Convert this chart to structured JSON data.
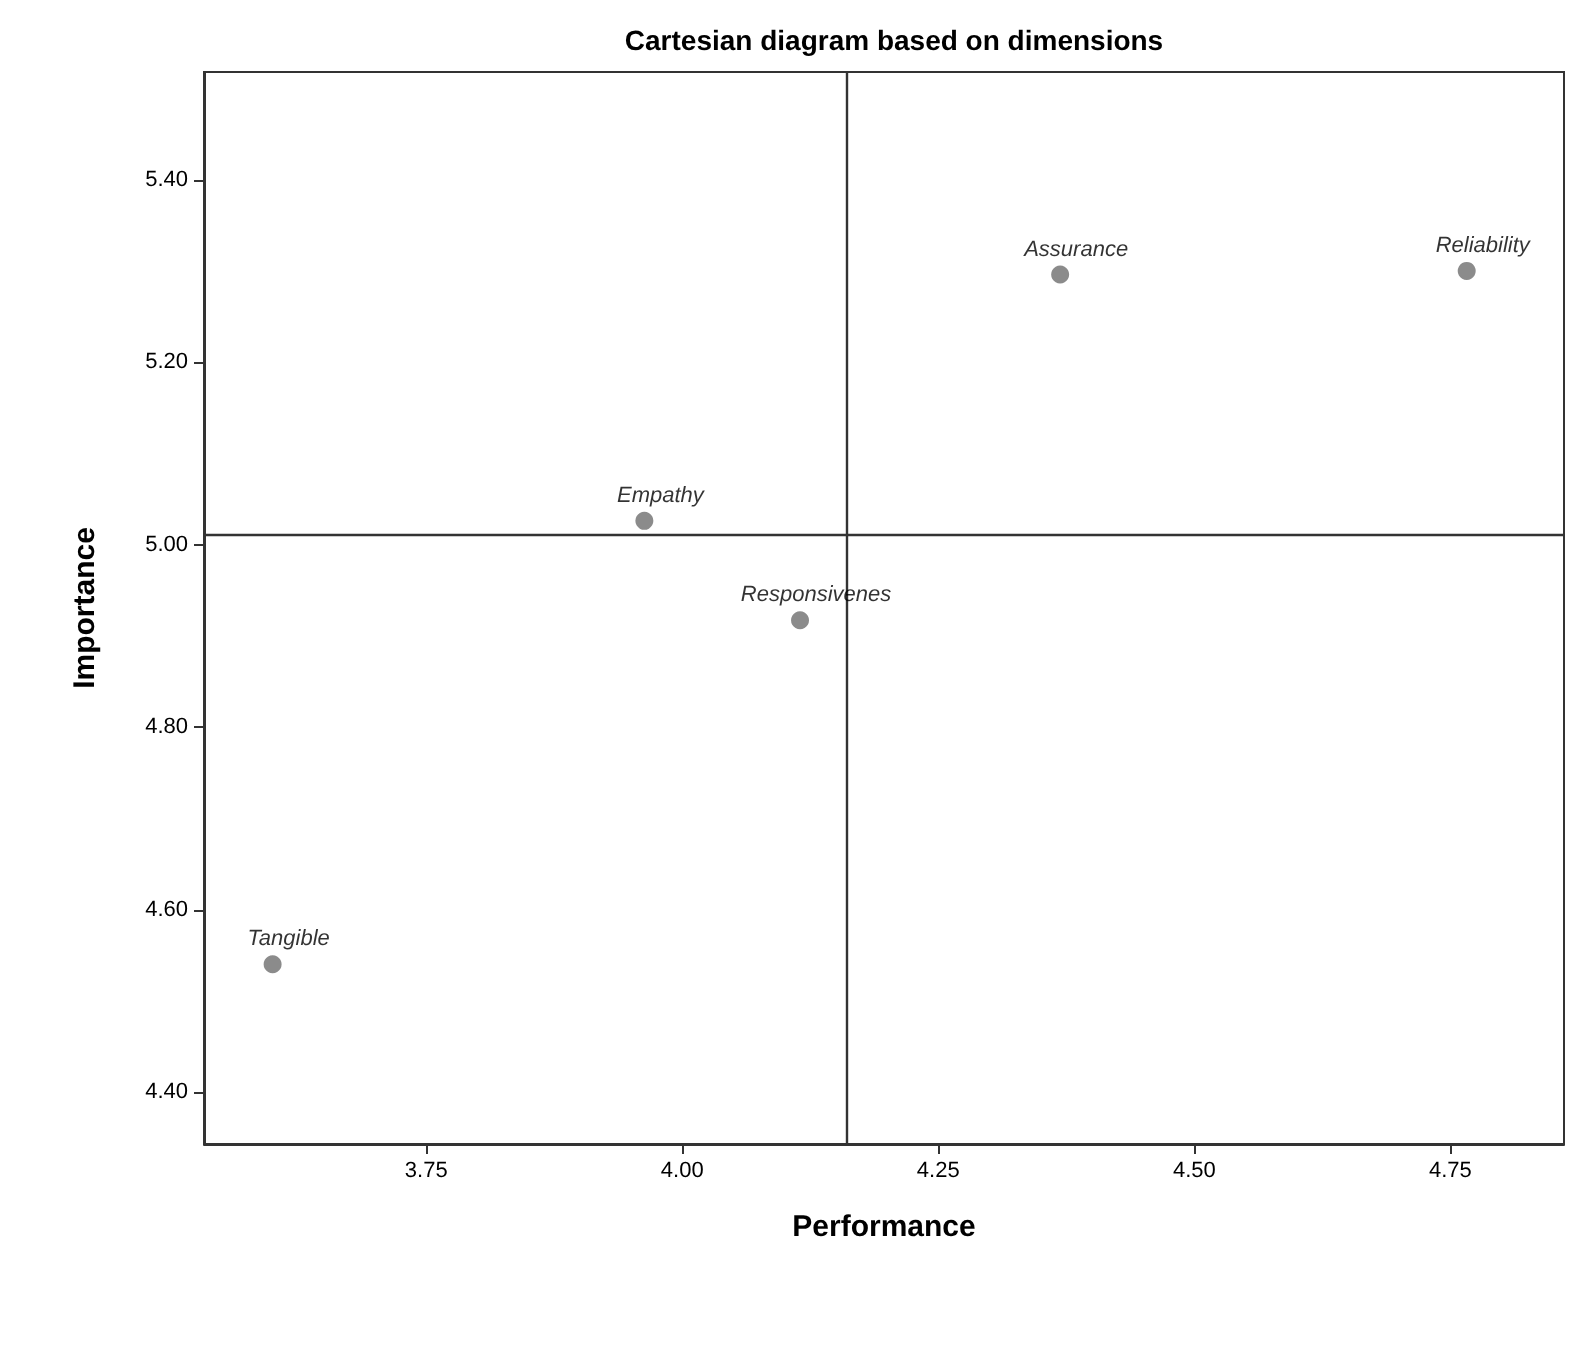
{
  "chart_data": {
    "type": "scatter",
    "title": "Cartesian diagram based on dimensions",
    "xlabel": "Performance",
    "ylabel": "Importance",
    "x": [
      3.6,
      3.963,
      4.115,
      4.369,
      4.766
    ],
    "series": [
      {
        "color": "#6e6e6e",
        "values": [
          4.54,
          5.026,
          4.917,
          5.296,
          5.3
        ]
      }
    ],
    "annotations": [
      {
        "text": "Tangible",
        "x": 3.6,
        "y": 4.54
      },
      {
        "text": "Empathy",
        "x": 3.963,
        "y": 5.026
      },
      {
        "text": "Responsivenes",
        "x": 4.115,
        "y": 4.917
      },
      {
        "text": "Assurance",
        "x": 4.369,
        "y": 5.296
      },
      {
        "text": "Reliability",
        "x": 4.766,
        "y": 5.3
      }
    ],
    "xlim": [
      3.533,
      4.861
    ],
    "ylim": [
      4.343,
      5.518
    ],
    "xticks": [
      {
        "value": 3.75,
        "label": "3.75"
      },
      {
        "value": 4,
        "label": "4.00"
      },
      {
        "value": 4.25,
        "label": "4.25"
      },
      {
        "value": 4.5,
        "label": "4.50"
      },
      {
        "value": 4.75,
        "label": "4.75"
      }
    ],
    "yticks": [
      {
        "value": 4.4,
        "label": "4.40"
      },
      {
        "value": 4.6,
        "label": "4.60"
      },
      {
        "value": 4.8,
        "label": "4.80"
      },
      {
        "value": 5,
        "label": "5.00"
      },
      {
        "value": 5.2,
        "label": "5.20"
      },
      {
        "value": 5.4,
        "label": "5.40"
      }
    ],
    "ref_lines": [
      {
        "axis": "x",
        "value": 4.162,
        "label": null,
        "color": "#333333"
      },
      {
        "axis": "y",
        "value": 5.007,
        "label": null,
        "color": "#333333"
      }
    ],
    "grid": false,
    "marker": "circle"
  }
}
